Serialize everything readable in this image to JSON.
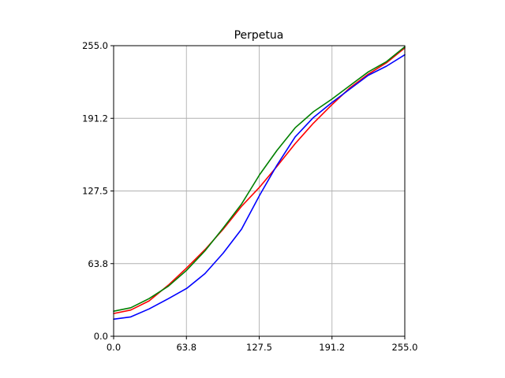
{
  "chart_data": {
    "type": "line",
    "title": "Perpetua",
    "xlabel": "",
    "ylabel": "",
    "xlim": [
      0,
      255
    ],
    "ylim": [
      0,
      255
    ],
    "xticks": [
      0,
      63.75,
      127.5,
      191.25,
      255
    ],
    "xtick_labels": [
      "0.0",
      "63.8",
      "127.5",
      "191.2",
      "255.0"
    ],
    "yticks": [
      0,
      63.75,
      127.5,
      191.25,
      255
    ],
    "ytick_labels": [
      "0.0",
      "63.8",
      "127.5",
      "191.2",
      "255.0"
    ],
    "grid": true,
    "legend": "none",
    "series": [
      {
        "color": "#ff0000",
        "x": [
          0,
          15,
          31,
          48,
          64,
          80,
          96,
          112,
          128,
          143,
          159,
          175,
          191,
          207,
          223,
          239,
          255
        ],
        "y": [
          20,
          23,
          31,
          45,
          60,
          76,
          94,
          114,
          131,
          149,
          169,
          187,
          203,
          218,
          230,
          240,
          253
        ]
      },
      {
        "color": "#008000",
        "x": [
          0,
          15,
          31,
          48,
          64,
          80,
          96,
          112,
          128,
          143,
          159,
          175,
          191,
          207,
          223,
          239,
          255
        ],
        "y": [
          22,
          25,
          33,
          44,
          58,
          75,
          95,
          116,
          142,
          163,
          183,
          197,
          208,
          220,
          232,
          241,
          254
        ]
      },
      {
        "color": "#0000ff",
        "x": [
          0,
          15,
          31,
          48,
          64,
          80,
          96,
          112,
          128,
          143,
          159,
          175,
          191,
          207,
          223,
          239,
          255
        ],
        "y": [
          15,
          17,
          24,
          33,
          42,
          55,
          73,
          94,
          124,
          150,
          175,
          192,
          205,
          217,
          229,
          237,
          247
        ]
      }
    ]
  }
}
